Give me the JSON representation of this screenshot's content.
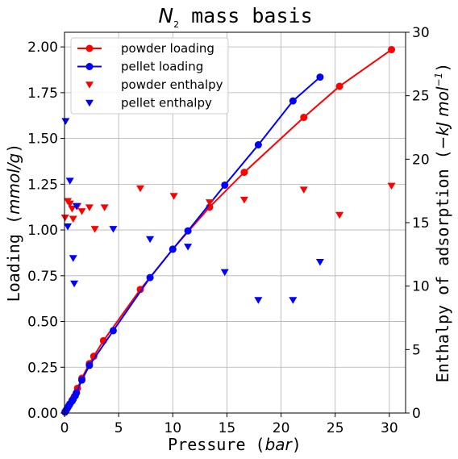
{
  "chart_data": {
    "type": "scatter",
    "title": {
      "symbol": "N",
      "subscript": "2",
      "text": " mass basis"
    },
    "xlabel": {
      "text": "Pressure (",
      "italic": "bar",
      "suffix": ")"
    },
    "ylabel": {
      "text": "Loading (",
      "italic": "mmol/g",
      "suffix": ")"
    },
    "y2label": {
      "text": "Enthalpy of adsorption (",
      "italic": "−kJ mol",
      "sup": "−1",
      "suffix": ")"
    },
    "xlim": [
      0,
      31.5
    ],
    "ylim": [
      0,
      2.08
    ],
    "y2lim": [
      0,
      30
    ],
    "xticks": [
      0,
      5,
      10,
      15,
      20,
      25,
      30
    ],
    "yticks": [
      0.0,
      0.25,
      0.5,
      0.75,
      1.0,
      1.25,
      1.5,
      1.75,
      2.0
    ],
    "y2ticks": [
      0,
      5,
      10,
      15,
      20,
      25,
      30
    ],
    "grid": true,
    "legend_position": "top-left",
    "series": [
      {
        "name": "powder loading",
        "kind": "line-marker",
        "axis": "left",
        "color": "#ff0000",
        "x": [
          0.05,
          0.1,
          0.2,
          0.3,
          0.4,
          0.5,
          0.7,
          0.9,
          1.1,
          1.2,
          1.6,
          2.3,
          2.7,
          3.6,
          7.0,
          10.0,
          13.4,
          16.6,
          22.1,
          25.4,
          30.2
        ],
        "y": [
          0.005,
          0.01,
          0.02,
          0.03,
          0.04,
          0.05,
          0.07,
          0.09,
          0.11,
          0.135,
          0.19,
          0.27,
          0.31,
          0.395,
          0.675,
          0.895,
          1.125,
          1.315,
          1.615,
          1.785,
          1.985
        ]
      },
      {
        "name": "pellet loading",
        "kind": "line-marker",
        "axis": "left",
        "color": "#0000ff",
        "x": [
          0.05,
          0.15,
          0.3,
          0.4,
          0.5,
          0.7,
          0.8,
          1.0,
          1.1,
          1.6,
          2.3,
          4.5,
          7.9,
          10.0,
          11.4,
          14.8,
          17.9,
          21.1,
          23.6
        ],
        "y": [
          0.005,
          0.015,
          0.03,
          0.04,
          0.05,
          0.065,
          0.075,
          0.095,
          0.11,
          0.18,
          0.26,
          0.45,
          0.74,
          0.895,
          0.995,
          1.245,
          1.465,
          1.705,
          1.835
        ]
      },
      {
        "name": "powder enthalpy",
        "kind": "triangle-down",
        "axis": "right",
        "color": "#ff0000",
        "x": [
          0.05,
          0.3,
          0.5,
          0.7,
          0.8,
          1.2,
          1.6,
          2.3,
          2.8,
          3.7,
          7.0,
          10.1,
          13.4,
          16.6,
          22.1,
          25.4,
          30.2
        ],
        "y": [
          15.4,
          16.7,
          16.5,
          16.1,
          15.3,
          16.3,
          15.9,
          16.2,
          14.5,
          16.2,
          17.7,
          17.1,
          16.6,
          16.8,
          17.6,
          15.6,
          17.9
        ]
      },
      {
        "name": "pellet enthalpy",
        "kind": "triangle-down",
        "axis": "right",
        "color": "#0000ff",
        "x": [
          0.1,
          0.3,
          0.5,
          0.8,
          0.9,
          1.1,
          4.5,
          7.9,
          11.4,
          14.8,
          17.9,
          21.1,
          23.6
        ],
        "y": [
          23.0,
          14.7,
          18.3,
          12.2,
          10.2,
          16.3,
          14.5,
          13.7,
          13.1,
          11.1,
          8.9,
          8.9,
          11.9
        ]
      }
    ]
  }
}
